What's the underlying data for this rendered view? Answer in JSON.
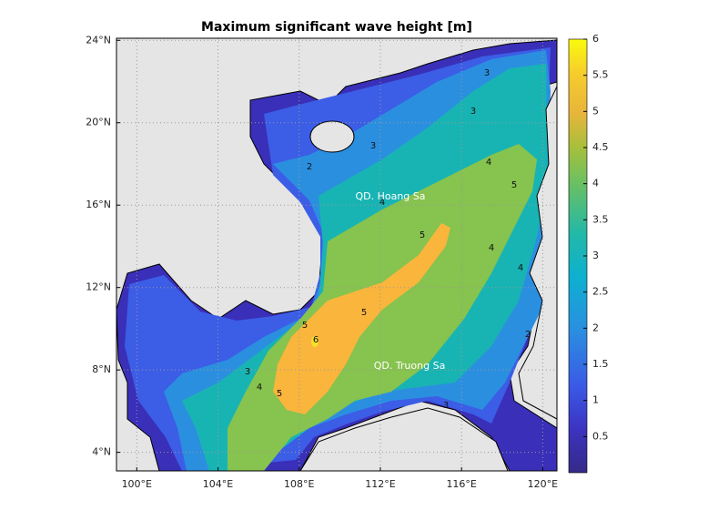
{
  "chart_data": {
    "type": "map",
    "title": "Maximum significant wave height [m]",
    "xlim": [
      99,
      120.7
    ],
    "ylim": [
      3.1,
      24.1
    ],
    "xticks": [
      {
        "value": 100,
        "label": "100°E"
      },
      {
        "value": 104,
        "label": "104°E"
      },
      {
        "value": 108,
        "label": "108°E"
      },
      {
        "value": 112,
        "label": "112°E"
      },
      {
        "value": 116,
        "label": "116°E"
      },
      {
        "value": 120,
        "label": "120°E"
      }
    ],
    "yticks": [
      {
        "value": 4,
        "label": "4°N"
      },
      {
        "value": 8,
        "label": "8°N"
      },
      {
        "value": 12,
        "label": "12°N"
      },
      {
        "value": 16,
        "label": "16°N"
      },
      {
        "value": 20,
        "label": "20°N"
      },
      {
        "value": 24,
        "label": "24°N"
      }
    ],
    "grid": true,
    "annotations": [
      "QD. Hoang Sa",
      "QD. Truong Sa"
    ],
    "contour_labels": [
      3,
      3,
      3,
      2,
      4,
      5,
      4,
      5,
      4,
      4,
      5,
      5,
      6,
      3,
      4,
      5,
      3,
      2
    ],
    "colorbar": {
      "ylim": [
        0,
        6
      ],
      "yticks": [
        0.5,
        1,
        1.5,
        2,
        2.5,
        3,
        3.5,
        4,
        4.5,
        5,
        5.5,
        6
      ]
    }
  }
}
